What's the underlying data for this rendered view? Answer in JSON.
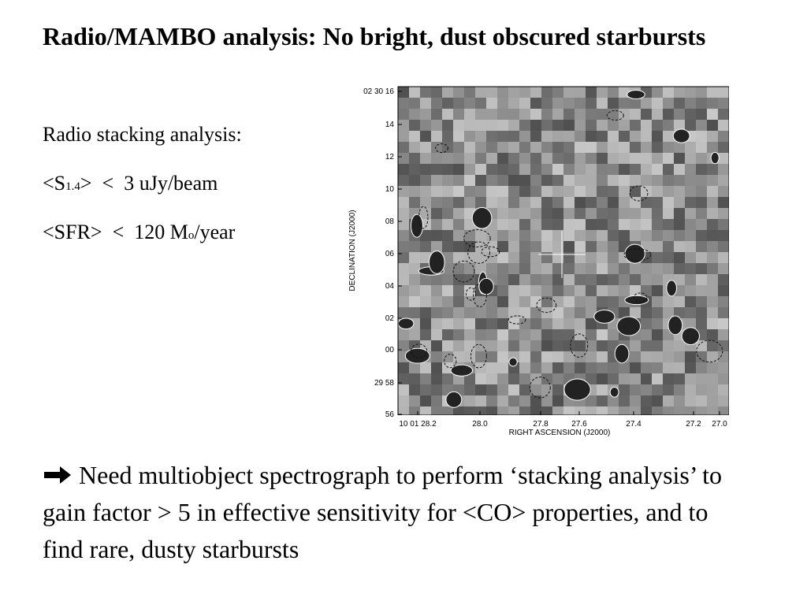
{
  "header": {
    "title": "Radio/MAMBO analysis: No bright, dust obscured starbursts"
  },
  "stacking": {
    "heading": "Radio stacking analysis:",
    "flux": {
      "pre": "<S",
      "sub": "1.4",
      "post": ">  <  3 uJy/beam"
    },
    "sfr": {
      "pre": "<SFR>  <  120 M",
      "sub": "o",
      "post": "/year"
    }
  },
  "figure": {
    "ylabel": "DECLINATION (J2000)",
    "xlabel": "RIGHT ASCENSION (J2000)",
    "yticks": [
      "02 30 16",
      "14",
      "12",
      "10",
      "08",
      "06",
      "04",
      "02",
      "00",
      "29 58",
      "56"
    ],
    "xticks": [
      "10 01 28.2",
      "28.0",
      "27.8",
      "27.6",
      "27.4",
      "27.2",
      "27.0"
    ]
  },
  "conclusion": "Need multiobject spectrograph to perform ‘stacking analysis’ to gain factor > 5  in effective sensitivity for <CO> properties, and to find rare, dusty starbursts"
}
